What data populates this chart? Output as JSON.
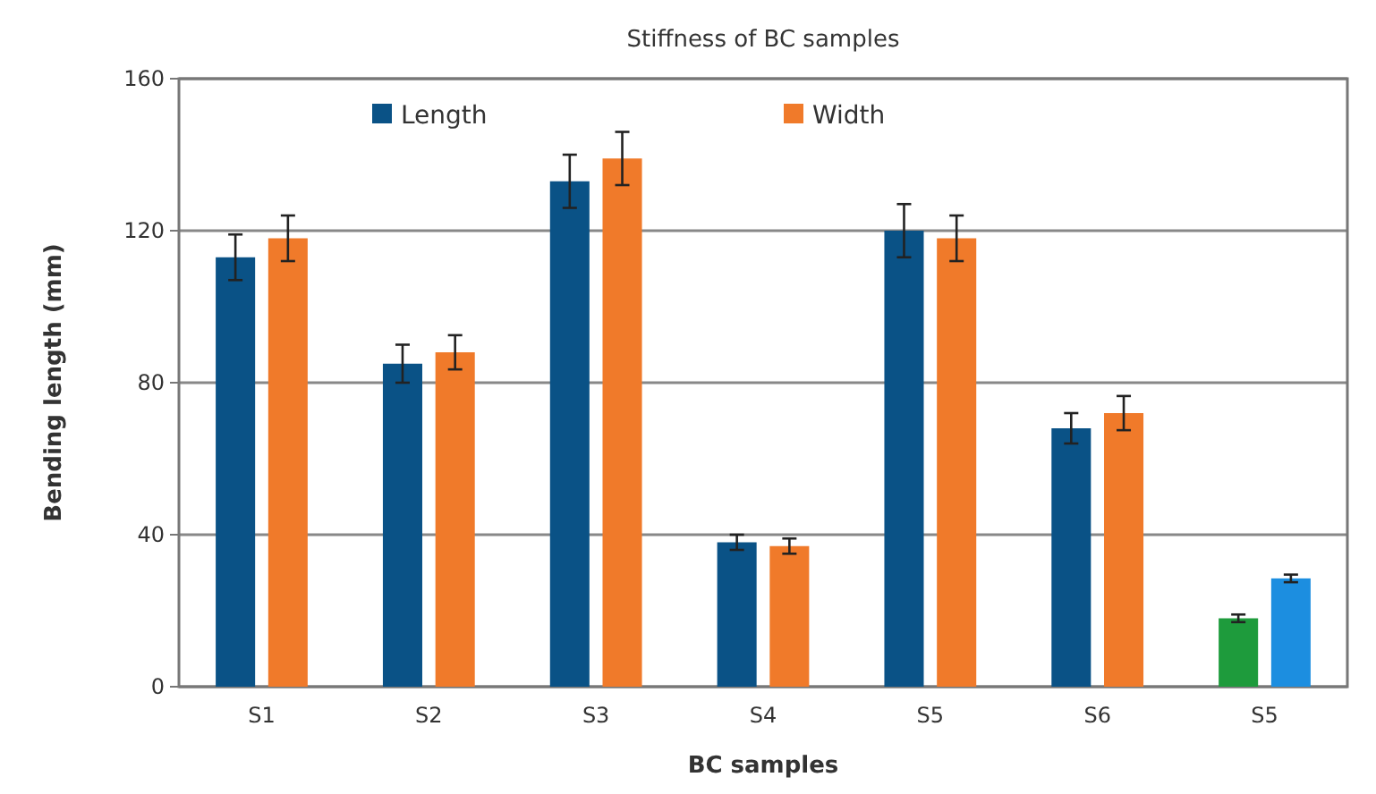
{
  "chart_data": {
    "type": "bar",
    "title": "Stiffness of BC samples",
    "xlabel": "BC samples",
    "ylabel": "Bending length (mm)",
    "categories": [
      "S1",
      "S2",
      "S3",
      "S4",
      "S5",
      "S6",
      "S5"
    ],
    "series": [
      {
        "name": "Length",
        "color": "#0a5286",
        "colors": [
          "#0a5286",
          "#0a5286",
          "#0a5286",
          "#0a5286",
          "#0a5286",
          "#0a5286",
          "#1e9b3c"
        ],
        "values": [
          113,
          85,
          133,
          38,
          120,
          68,
          18
        ],
        "errors": [
          6,
          5,
          7,
          2,
          7,
          4,
          1
        ]
      },
      {
        "name": "Width",
        "color": "#f07a2a",
        "colors": [
          "#f07a2a",
          "#f07a2a",
          "#f07a2a",
          "#f07a2a",
          "#f07a2a",
          "#f07a2a",
          "#1c8ee0"
        ],
        "values": [
          118,
          88,
          139,
          37,
          118,
          72,
          28.5
        ],
        "errors": [
          6,
          4.5,
          7,
          2,
          6,
          4.5,
          1
        ]
      }
    ],
    "ylim": [
      0,
      160
    ],
    "yticks": [
      0,
      40,
      80,
      120,
      160
    ],
    "grid": "y",
    "legend": "top"
  }
}
